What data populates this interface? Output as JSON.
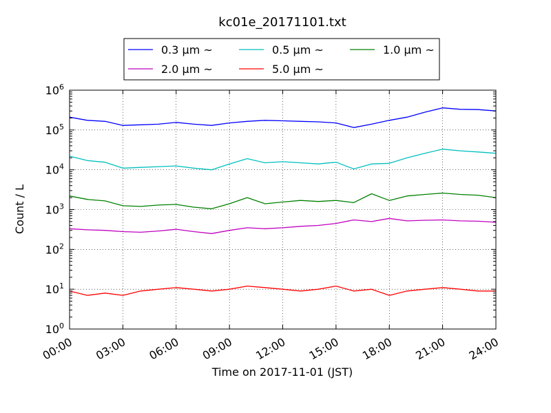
{
  "chart_data": {
    "type": "line",
    "title": "kc01e_20171101.txt",
    "xlabel": "Time on 2017-11-01 (JST)",
    "ylabel": "Count / L",
    "yscale": "log",
    "ylim": [
      1,
      1000000
    ],
    "xlim": [
      "00:00",
      "24:00"
    ],
    "grid": true,
    "legend_position": "top-center",
    "x_ticks": [
      "00:00",
      "03:00",
      "06:00",
      "09:00",
      "12:00",
      "15:00",
      "18:00",
      "21:00",
      "24:00"
    ],
    "y_ticks": [
      {
        "base": "10",
        "exp": "0",
        "value": 1
      },
      {
        "base": "10",
        "exp": "1",
        "value": 10
      },
      {
        "base": "10",
        "exp": "2",
        "value": 100
      },
      {
        "base": "10",
        "exp": "3",
        "value": 1000
      },
      {
        "base": "10",
        "exp": "4",
        "value": 10000
      },
      {
        "base": "10",
        "exp": "5",
        "value": 100000
      },
      {
        "base": "10",
        "exp": "6",
        "value": 1000000
      }
    ],
    "x": [
      "00:00",
      "01:00",
      "02:00",
      "03:00",
      "04:00",
      "05:00",
      "06:00",
      "07:00",
      "08:00",
      "09:00",
      "10:00",
      "11:00",
      "12:00",
      "13:00",
      "14:00",
      "15:00",
      "16:00",
      "17:00",
      "18:00",
      "19:00",
      "20:00",
      "21:00",
      "22:00",
      "23:00",
      "24:00"
    ],
    "series": [
      {
        "name": "0.3 μm ~",
        "color": "#0000ff",
        "values": [
          210000,
          175000,
          165000,
          130000,
          135000,
          140000,
          155000,
          140000,
          130000,
          150000,
          165000,
          175000,
          170000,
          165000,
          160000,
          150000,
          115000,
          140000,
          175000,
          210000,
          280000,
          360000,
          330000,
          325000,
          300000
        ]
      },
      {
        "name": "0.5 μm ~",
        "color": "#00bfbf",
        "values": [
          22000,
          17000,
          15500,
          11000,
          11500,
          12000,
          12500,
          11000,
          10000,
          14000,
          19000,
          15000,
          16000,
          15000,
          14000,
          15500,
          10500,
          14000,
          14500,
          20000,
          26000,
          33000,
          30000,
          28000,
          26000
        ]
      },
      {
        "name": "1.0 μm ~",
        "color": "#008000",
        "values": [
          2200,
          1800,
          1650,
          1250,
          1200,
          1300,
          1350,
          1150,
          1050,
          1400,
          2000,
          1400,
          1550,
          1700,
          1600,
          1700,
          1500,
          2500,
          1700,
          2200,
          2400,
          2600,
          2400,
          2300,
          2000
        ]
      },
      {
        "name": "2.0 μm ~",
        "color": "#bf00bf",
        "values": [
          330,
          310,
          300,
          280,
          270,
          290,
          320,
          280,
          250,
          300,
          350,
          330,
          350,
          380,
          400,
          450,
          550,
          500,
          600,
          520,
          540,
          550,
          520,
          510,
          480
        ]
      },
      {
        "name": "5.0 μm ~",
        "color": "#ff0000",
        "values": [
          9,
          7,
          8,
          7,
          9,
          10,
          11,
          10,
          9,
          10,
          12,
          11,
          10,
          9,
          10,
          12,
          9,
          10,
          7,
          9,
          10,
          11,
          10,
          9,
          9
        ]
      }
    ]
  }
}
